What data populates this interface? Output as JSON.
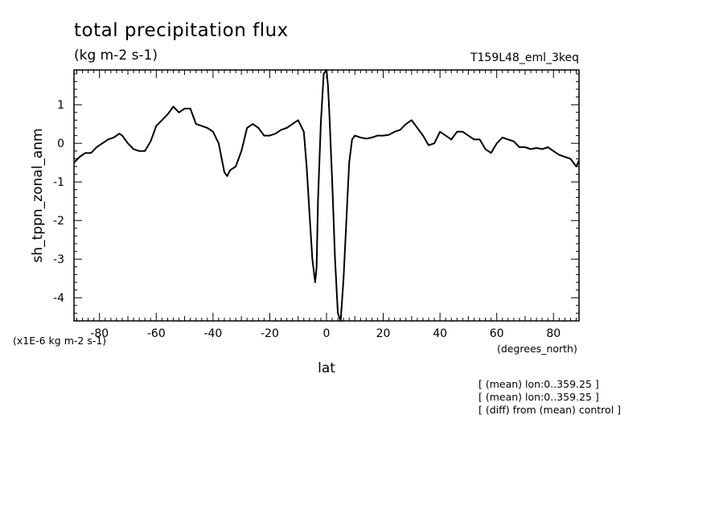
{
  "chart_data": {
    "type": "line",
    "title": "total precipitation flux",
    "subtitle": "(kg m-2 s-1)",
    "experiment": "T159L48_eml_3keq",
    "ylabel": "sh_tppn_zonal_anm",
    "xlabel": "lat",
    "xunits": "(degrees_north)",
    "yscale_note": "(x1E-6 kg m-2 s-1)",
    "notes": [
      "[ (mean) lon:0..359.25 ]",
      "[ (mean) lon:0..359.25 ]",
      "[ (diff) from (mean) control ]"
    ],
    "xlim": [
      -89,
      89
    ],
    "ylim": [
      -4.6,
      1.9
    ],
    "xticks": [
      -80,
      -60,
      -40,
      -20,
      0,
      20,
      40,
      60,
      80
    ],
    "xtick_labels": [
      "-80",
      "-60",
      "-40",
      "-20",
      "0",
      "20",
      "40",
      "60",
      "80"
    ],
    "yticks": [
      1,
      0,
      -1,
      -2,
      -3,
      -4
    ],
    "ytick_labels": [
      "1",
      "0",
      "-1",
      "-2",
      "-3",
      "-4"
    ],
    "grid": false,
    "series": [
      {
        "x": [
          -89,
          -87,
          -85,
          -83,
          -81,
          -79,
          -77,
          -75,
          -73,
          -72,
          -70,
          -68,
          -66,
          -64,
          -62,
          -60,
          -58,
          -56,
          -54,
          -52,
          -50,
          -48,
          -46,
          -44,
          -42,
          -40,
          -38,
          -36,
          -35,
          -34,
          -32,
          -30,
          -28,
          -26,
          -24,
          -22,
          -20,
          -18,
          -16,
          -14,
          -12,
          -10,
          -8,
          -7,
          -6,
          -5,
          -4,
          -3.5,
          -3,
          -2,
          -1,
          0,
          0.5,
          1,
          2,
          3,
          4,
          5,
          6,
          7,
          8,
          9,
          10,
          12,
          14,
          16,
          18,
          20,
          22,
          24,
          26,
          28,
          30,
          32,
          34,
          36,
          38,
          40,
          42,
          44,
          46,
          48,
          50,
          52,
          54,
          56,
          58,
          60,
          62,
          64,
          66,
          68,
          70,
          72,
          74,
          76,
          78,
          80,
          82,
          84,
          86,
          88,
          89
        ],
        "y": [
          -0.5,
          -0.35,
          -0.25,
          -0.25,
          -0.1,
          0.0,
          0.1,
          0.15,
          0.25,
          0.2,
          0.0,
          -0.15,
          -0.2,
          -0.2,
          0.05,
          0.45,
          0.6,
          0.75,
          0.95,
          0.8,
          0.9,
          0.9,
          0.5,
          0.45,
          0.4,
          0.3,
          0.0,
          -0.75,
          -0.85,
          -0.7,
          -0.6,
          -0.2,
          0.4,
          0.5,
          0.4,
          0.2,
          0.2,
          0.25,
          0.35,
          0.4,
          0.5,
          0.6,
          0.3,
          -0.6,
          -1.8,
          -3.0,
          -3.6,
          -3.2,
          -1.5,
          0.5,
          1.8,
          1.9,
          1.5,
          0.8,
          -1.0,
          -3.0,
          -4.4,
          -4.6,
          -3.5,
          -2.0,
          -0.5,
          0.1,
          0.2,
          0.15,
          0.12,
          0.15,
          0.2,
          0.2,
          0.22,
          0.3,
          0.35,
          0.5,
          0.6,
          0.4,
          0.2,
          -0.05,
          0.0,
          0.3,
          0.2,
          0.1,
          0.3,
          0.3,
          0.2,
          0.1,
          0.1,
          -0.15,
          -0.25,
          0.0,
          0.15,
          0.1,
          0.05,
          -0.1,
          -0.1,
          -0.15,
          -0.12,
          -0.15,
          -0.1,
          -0.2,
          -0.3,
          -0.35,
          -0.4,
          -0.6,
          -0.45
        ]
      }
    ]
  }
}
